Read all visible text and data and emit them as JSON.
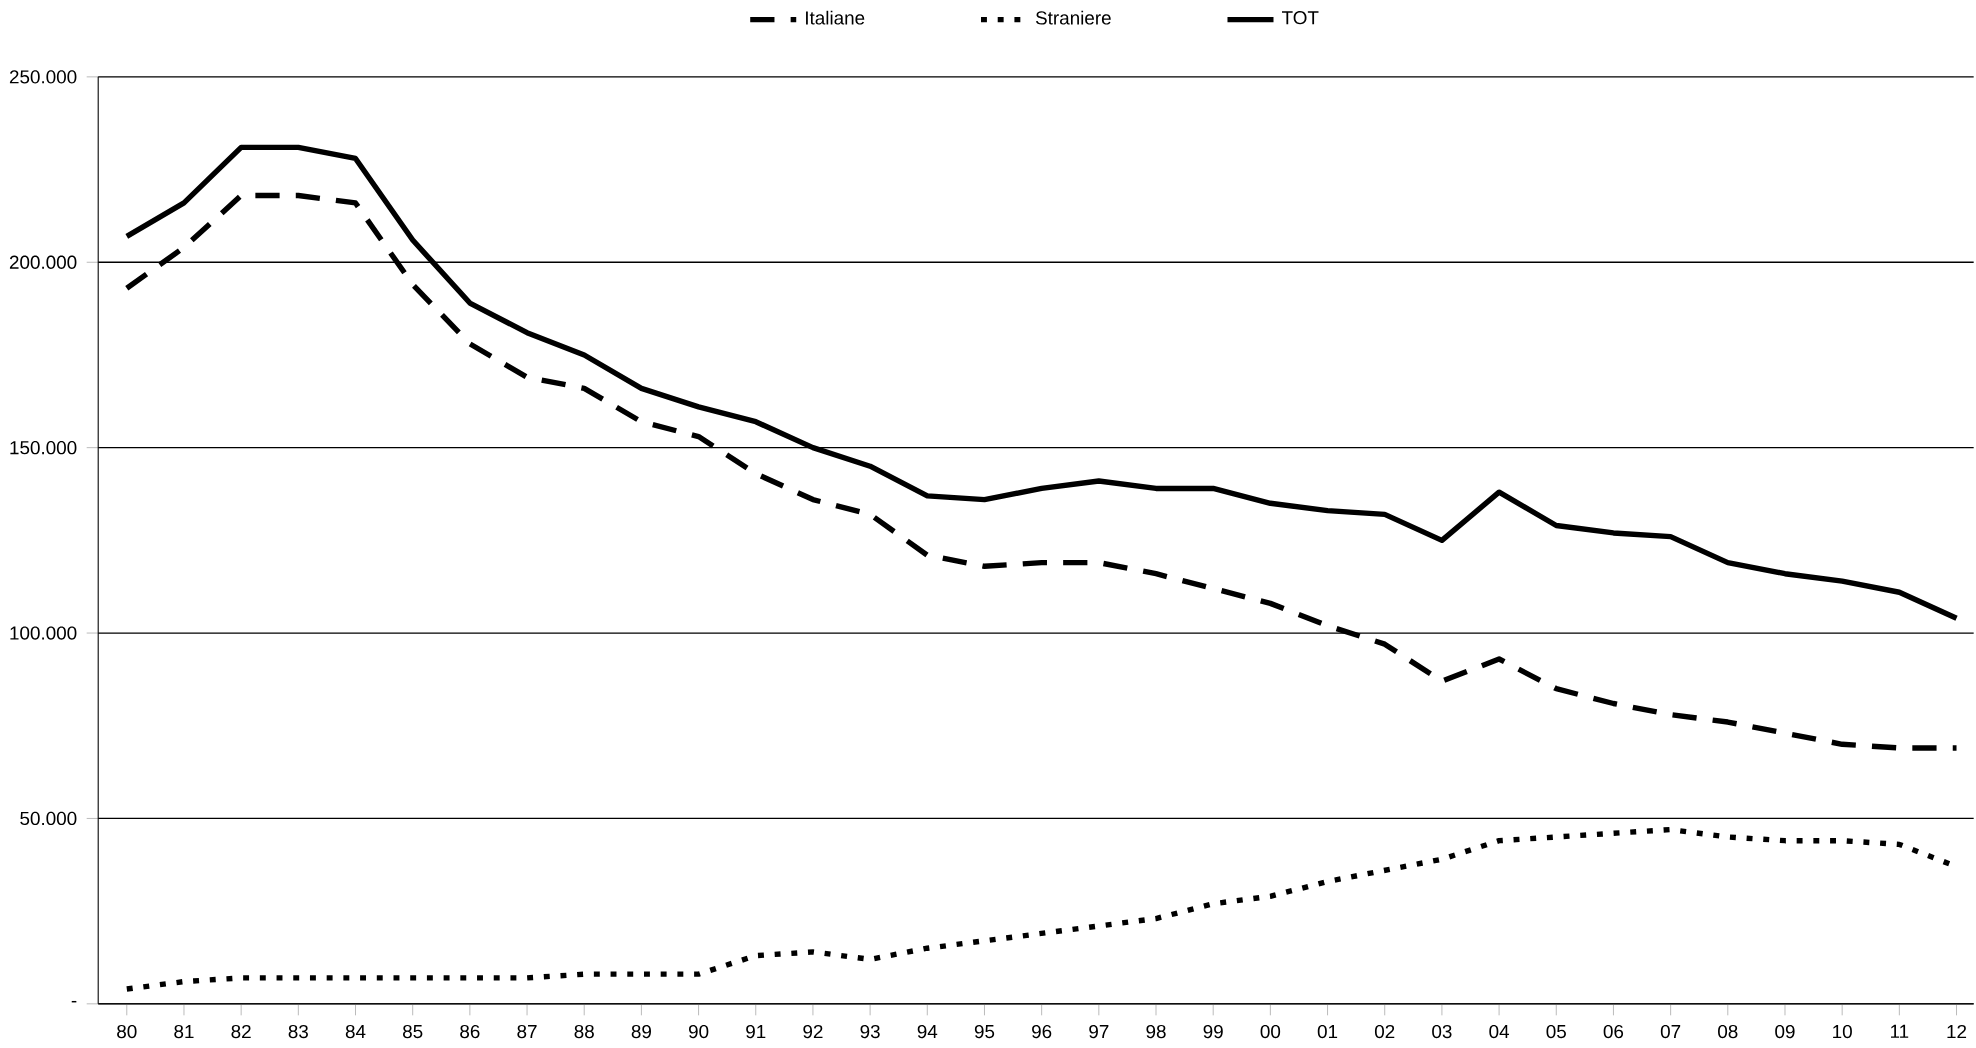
{
  "chart_data": {
    "type": "line",
    "categories": [
      "80",
      "81",
      "82",
      "83",
      "84",
      "85",
      "86",
      "87",
      "88",
      "89",
      "90",
      "91",
      "92",
      "93",
      "94",
      "95",
      "96",
      "97",
      "98",
      "99",
      "00",
      "01",
      "02",
      "03",
      "04",
      "05",
      "06",
      "07",
      "08",
      "09",
      "10",
      "11",
      "12"
    ],
    "series": [
      {
        "name": "Italiane",
        "color": "#000000",
        "line_style": "dashed",
        "values": [
          193000,
          204000,
          218000,
          218000,
          216000,
          194000,
          178000,
          169000,
          166000,
          157000,
          153000,
          143000,
          136000,
          132000,
          121000,
          118000,
          119000,
          119000,
          116000,
          112000,
          108000,
          102000,
          97000,
          87000,
          93000,
          85000,
          81000,
          78000,
          76000,
          73000,
          70000,
          69000,
          69000
        ]
      },
      {
        "name": "Straniere",
        "color": "#000000",
        "line_style": "dotted",
        "values": [
          4000,
          6000,
          7000,
          7000,
          7000,
          7000,
          7000,
          7000,
          8000,
          8000,
          8000,
          13000,
          14000,
          12000,
          15000,
          17000,
          19000,
          21000,
          23000,
          27000,
          29000,
          33000,
          36000,
          39000,
          44000,
          45000,
          46000,
          47000,
          45000,
          44000,
          44000,
          43000,
          37000
        ]
      },
      {
        "name": "TOT",
        "color": "#000000",
        "line_style": "solid",
        "values": [
          207000,
          216000,
          231000,
          231000,
          228000,
          206000,
          189000,
          181000,
          175000,
          166000,
          161000,
          157000,
          150000,
          145000,
          137000,
          136000,
          139000,
          141000,
          139000,
          139000,
          135000,
          133000,
          132000,
          125000,
          138000,
          129000,
          127000,
          126000,
          119000,
          116000,
          114000,
          111000,
          104000
        ]
      }
    ],
    "ylim": [
      0,
      250000
    ],
    "yticks": [
      {
        "value": 0,
        "label": "-"
      },
      {
        "value": 50000,
        "label": "50.000"
      },
      {
        "value": 100000,
        "label": "100.000"
      },
      {
        "value": 150000,
        "label": "150.000"
      },
      {
        "value": 200000,
        "label": "200.000"
      },
      {
        "value": 250000,
        "label": "250.000"
      }
    ],
    "grid": "y",
    "legend": "top",
    "marker": "none"
  }
}
